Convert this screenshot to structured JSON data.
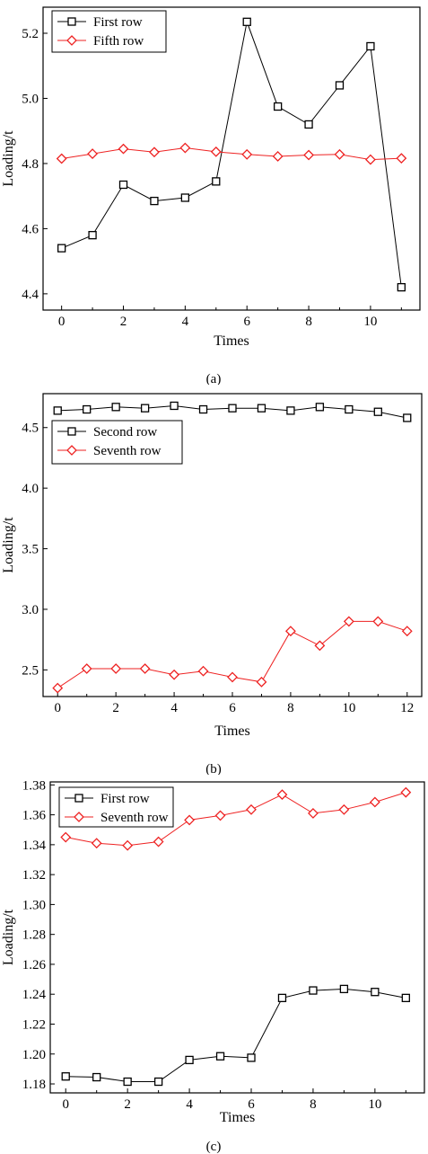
{
  "colors": {
    "first": "#000000",
    "second": "#ee2222",
    "axis": "#000000"
  },
  "chart_data": [
    {
      "type": "line",
      "caption": "(a)",
      "xlabel": "Times",
      "ylabel": "Loading/t",
      "xlim": [
        -0.6,
        11.6
      ],
      "ylim": [
        4.35,
        5.28
      ],
      "xticks": [
        0,
        2,
        4,
        6,
        8,
        10
      ],
      "yticks": [
        4.4,
        4.6,
        4.8,
        5.0,
        5.2
      ],
      "ytick_labels": [
        "4.4",
        "4.6",
        "4.8",
        "5.0",
        "5.2"
      ],
      "legend_position": "top-left",
      "series": [
        {
          "name": "First row",
          "marker": "square",
          "x": [
            0,
            1,
            2,
            3,
            4,
            5,
            6,
            7,
            8,
            9,
            10,
            11
          ],
          "values": [
            4.54,
            4.58,
            4.735,
            4.685,
            4.695,
            4.745,
            5.235,
            4.975,
            4.92,
            5.04,
            5.16,
            4.42
          ]
        },
        {
          "name": "Fifth row",
          "marker": "diamond",
          "x": [
            0,
            1,
            2,
            3,
            4,
            5,
            6,
            7,
            8,
            9,
            10,
            11
          ],
          "values": [
            4.815,
            4.83,
            4.845,
            4.835,
            4.848,
            4.836,
            4.828,
            4.822,
            4.826,
            4.828,
            4.812,
            4.816
          ]
        }
      ]
    },
    {
      "type": "line",
      "caption": "(b)",
      "xlabel": "Times",
      "ylabel": "Loading/t",
      "xlim": [
        -0.5,
        12.5
      ],
      "ylim": [
        2.28,
        4.78
      ],
      "xticks": [
        0,
        2,
        4,
        6,
        8,
        10,
        12
      ],
      "yticks": [
        2.5,
        3.0,
        3.5,
        4.0,
        4.5
      ],
      "ytick_labels": [
        "2.5",
        "3.0",
        "3.5",
        "4.0",
        "4.5"
      ],
      "legend_position": "upper-left",
      "series": [
        {
          "name": "Second row",
          "marker": "square",
          "x": [
            0,
            1,
            2,
            3,
            4,
            5,
            6,
            7,
            8,
            9,
            10,
            11,
            12
          ],
          "values": [
            4.64,
            4.65,
            4.67,
            4.66,
            4.68,
            4.65,
            4.66,
            4.66,
            4.64,
            4.67,
            4.65,
            4.63,
            4.58
          ]
        },
        {
          "name": "Seventh row",
          "marker": "diamond",
          "x": [
            0,
            1,
            2,
            3,
            4,
            5,
            6,
            7,
            8,
            9,
            10,
            11,
            12
          ],
          "values": [
            2.35,
            2.51,
            2.51,
            2.51,
            2.46,
            2.49,
            2.44,
            2.4,
            2.82,
            2.7,
            2.9,
            2.9,
            2.82
          ]
        }
      ]
    },
    {
      "type": "line",
      "caption": "(c)",
      "xlabel": "Times",
      "ylabel": "Loading/t",
      "xlim": [
        -0.5,
        11.6
      ],
      "ylim": [
        1.174,
        1.382
      ],
      "xticks": [
        0,
        2,
        4,
        6,
        8,
        10
      ],
      "yticks": [
        1.18,
        1.2,
        1.22,
        1.24,
        1.26,
        1.28,
        1.3,
        1.32,
        1.34,
        1.36,
        1.38
      ],
      "ytick_labels": [
        "1.18",
        "1.20",
        "1.22",
        "1.24",
        "1.26",
        "1.28",
        "1.30",
        "1.32",
        "1.34",
        "1.36",
        "1.38"
      ],
      "legend_position": "top-left",
      "series": [
        {
          "name": "First row",
          "marker": "square",
          "x": [
            0,
            1,
            2,
            3,
            4,
            5,
            6,
            7,
            8,
            9,
            10,
            11
          ],
          "values": [
            1.185,
            1.1845,
            1.1815,
            1.1815,
            1.196,
            1.1985,
            1.1975,
            1.2375,
            1.2425,
            1.2435,
            1.2415,
            1.2375
          ]
        },
        {
          "name": "Seventh row",
          "marker": "diamond",
          "x": [
            0,
            1,
            2,
            3,
            4,
            5,
            6,
            7,
            8,
            9,
            10,
            11
          ],
          "values": [
            1.345,
            1.341,
            1.3395,
            1.342,
            1.3565,
            1.3595,
            1.3635,
            1.3735,
            1.361,
            1.3635,
            1.3685,
            1.375
          ]
        }
      ]
    }
  ]
}
